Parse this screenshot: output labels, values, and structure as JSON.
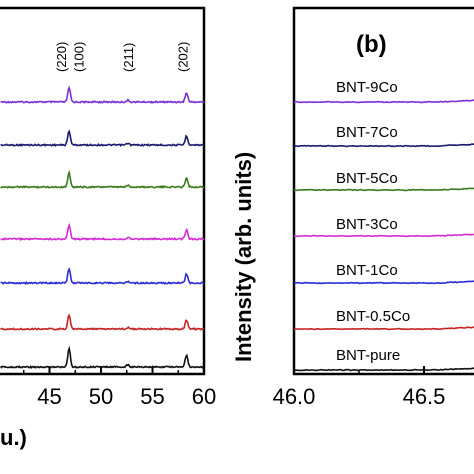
{
  "chart_data": [
    {
      "type": "line",
      "panel": "a",
      "xlim": [
        40,
        60
      ],
      "x_ticks": [
        "45",
        "50",
        "55",
        "60"
      ],
      "x_tick_values": [
        45,
        50,
        55,
        60
      ],
      "xlabel_fragment": "u.)",
      "peak_labels": [
        {
          "text": "(220)",
          "x": 46.2
        },
        {
          "text": "(100)",
          "x": 47.9
        },
        {
          "text": "(211)",
          "x": 52.7
        },
        {
          "text": "(202)",
          "x": 58.0
        }
      ],
      "peaks": [
        {
          "x": 46.9,
          "height": 1.0
        },
        {
          "x": 52.6,
          "height": 0.12
        },
        {
          "x": 58.3,
          "height": 0.65
        }
      ],
      "series": [
        {
          "color": "#7b2fd6"
        },
        {
          "color": "#1a1a6e"
        },
        {
          "color": "#3a7a1a"
        },
        {
          "color": "#d42bd4"
        },
        {
          "color": "#2a2ad6"
        },
        {
          "color": "#c42424"
        },
        {
          "color": "#111111"
        }
      ]
    },
    {
      "type": "line",
      "panel": "b",
      "panel_label": "(b)",
      "ylabel": "Intensity (arb. units)",
      "xlim": [
        46.0,
        46.7
      ],
      "x_ticks": [
        "46.0",
        "46.5"
      ],
      "x_tick_values": [
        46.0,
        46.5
      ],
      "series": [
        {
          "name": "BNT-9Co",
          "color": "#7b2fd6"
        },
        {
          "name": "BNT-7Co",
          "color": "#1a1a6e"
        },
        {
          "name": "BNT-5Co",
          "color": "#3a7a1a"
        },
        {
          "name": "BNT-3Co",
          "color": "#d42bd4"
        },
        {
          "name": "BNT-1Co",
          "color": "#2a2ad6"
        },
        {
          "name": "BNT-0.5Co",
          "color": "#c42424"
        },
        {
          "name": "BNT-pure",
          "color": "#111111"
        }
      ]
    }
  ]
}
